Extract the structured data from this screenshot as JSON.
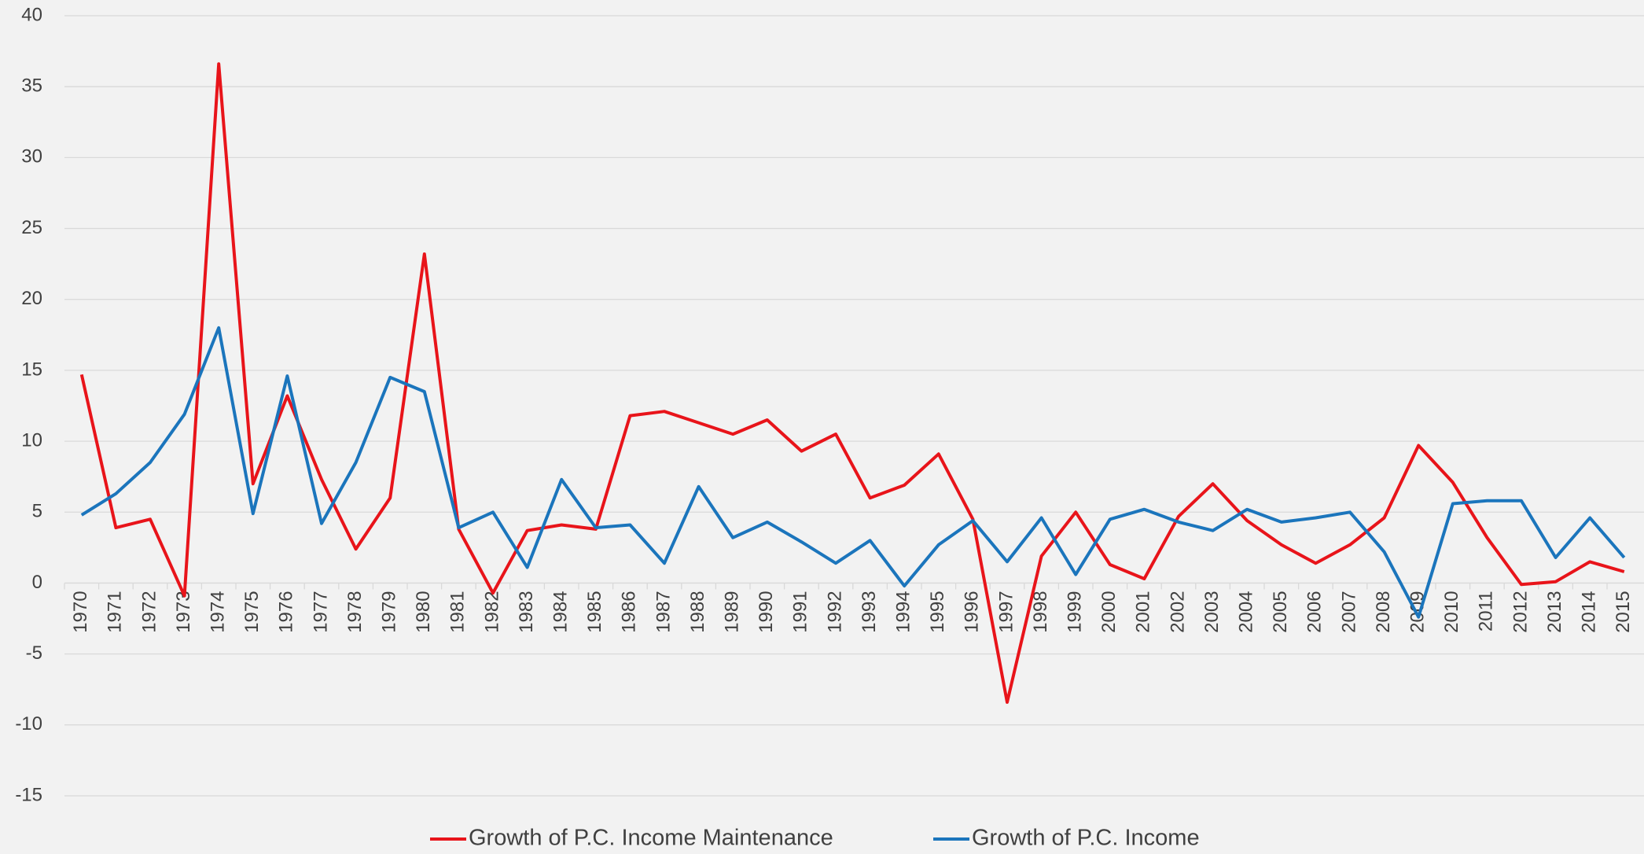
{
  "chart_data": {
    "type": "line",
    "categories": [
      "1970",
      "1971",
      "1972",
      "1973",
      "1974",
      "1975",
      "1976",
      "1977",
      "1978",
      "1979",
      "1980",
      "1981",
      "1982",
      "1983",
      "1984",
      "1985",
      "1986",
      "1987",
      "1988",
      "1989",
      "1990",
      "1991",
      "1992",
      "1993",
      "1994",
      "1995",
      "1996",
      "1997",
      "1998",
      "1999",
      "2000",
      "2001",
      "2002",
      "2003",
      "2004",
      "2005",
      "2006",
      "2007",
      "2008",
      "2009",
      "2010",
      "2011",
      "2012",
      "2013",
      "2014",
      "2015"
    ],
    "series": [
      {
        "name": "Growth of P.C. Income Maintenance",
        "color": "#e8141a",
        "values": [
          14.7,
          3.9,
          4.5,
          -0.9,
          36.6,
          7.0,
          13.2,
          7.3,
          2.4,
          6.0,
          23.2,
          3.8,
          -0.7,
          3.7,
          4.1,
          3.8,
          11.8,
          12.1,
          11.3,
          10.5,
          11.5,
          9.3,
          10.5,
          6.0,
          6.9,
          9.1,
          4.5,
          -8.4,
          1.9,
          5.0,
          1.3,
          0.3,
          4.7,
          7.0,
          4.4,
          2.7,
          1.4,
          2.7,
          4.6,
          9.7,
          7.1,
          3.2,
          -0.1,
          0.1,
          1.5,
          0.8
        ]
      },
      {
        "name": "Growth of P.C. Income",
        "color": "#1b75bc",
        "values": [
          4.8,
          6.3,
          8.5,
          11.9,
          18.0,
          4.9,
          14.6,
          4.2,
          8.5,
          14.5,
          13.5,
          3.9,
          5.0,
          1.1,
          7.3,
          3.9,
          4.1,
          1.4,
          6.8,
          3.2,
          4.3,
          2.9,
          1.4,
          3.0,
          -0.2,
          2.7,
          4.4,
          1.5,
          4.6,
          0.6,
          4.5,
          5.2,
          4.3,
          3.7,
          5.2,
          4.3,
          4.6,
          5.0,
          2.2,
          -2.4,
          5.6,
          5.8,
          5.8,
          1.8,
          4.6,
          1.8
        ]
      }
    ],
    "ylim": [
      -15,
      40
    ],
    "yticks": [
      -15,
      -10,
      -5,
      0,
      5,
      10,
      15,
      20,
      25,
      30,
      35,
      40
    ],
    "grid": true,
    "legend": "bottom"
  }
}
